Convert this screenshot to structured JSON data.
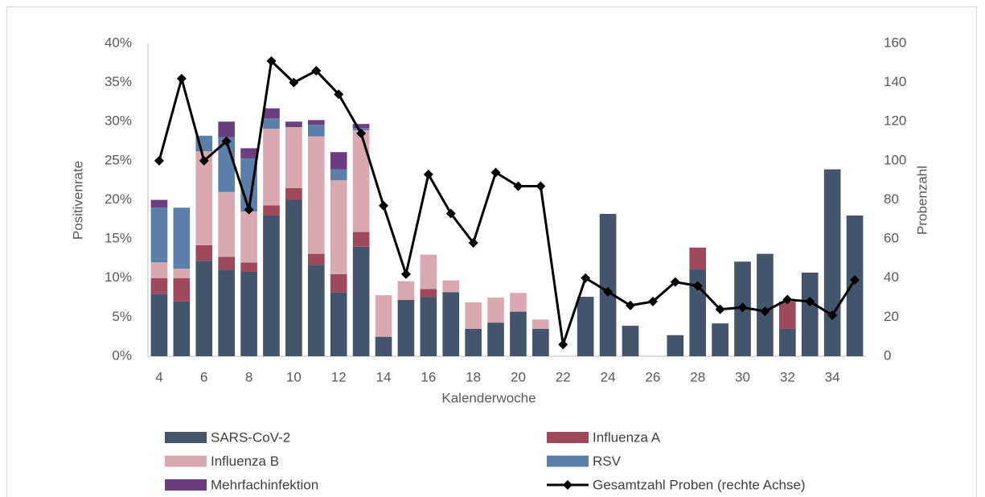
{
  "chart_data": {
    "type": "bar",
    "stacked": true,
    "x_label": "Kalenderwoche",
    "y_label": "Positivenrate",
    "y2_label": "Probenzahl",
    "categories": [
      "4",
      null,
      "6",
      null,
      "8",
      null,
      "10",
      null,
      "12",
      null,
      "14",
      null,
      "16",
      null,
      "18",
      null,
      "20",
      null,
      "22",
      null,
      "24",
      null,
      "26",
      null,
      "28",
      null,
      "30",
      null,
      "32",
      null,
      "34",
      null
    ],
    "ylim": [
      0,
      40
    ],
    "yticks": [
      {
        "value": 0,
        "label": "0%"
      },
      {
        "value": 5,
        "label": "5%"
      },
      {
        "value": 10,
        "label": "10%"
      },
      {
        "value": 15,
        "label": "15%"
      },
      {
        "value": 20,
        "label": "20%"
      },
      {
        "value": 25,
        "label": "25%"
      },
      {
        "value": 30,
        "label": "30%"
      },
      {
        "value": 35,
        "label": "35%"
      },
      {
        "value": 40,
        "label": "40%"
      }
    ],
    "y2lim": [
      0,
      160
    ],
    "y2ticks": [
      0,
      20,
      40,
      60,
      80,
      100,
      120,
      140,
      160
    ],
    "series": [
      {
        "name": "SARS-CoV-2",
        "color": "#44546a",
        "values": [
          8,
          7,
          12.2,
          11,
          10.8,
          18,
          20,
          11.7,
          8.2,
          14,
          2.5,
          7.2,
          7.6,
          8.2,
          3.5,
          4.3,
          5.7,
          3.5,
          0,
          7.6,
          18.2,
          3.9,
          0,
          2.7,
          11.1,
          4.2,
          12.1,
          13.1,
          3.5,
          10.7,
          23.9,
          18
        ]
      },
      {
        "name": "Influenza A",
        "color": "#9e4a5c",
        "values": [
          2,
          3,
          2,
          1.7,
          1.2,
          1.3,
          1.5,
          1.4,
          2.3,
          1.9,
          0,
          0,
          1,
          0,
          0,
          0,
          0,
          0,
          0,
          0,
          0,
          0,
          0,
          0,
          2.8,
          0,
          0,
          0,
          3.5,
          0,
          0,
          0
        ]
      },
      {
        "name": "Influenza B",
        "color": "#d9a8b0",
        "values": [
          2,
          1.2,
          12,
          8.3,
          6.5,
          9.8,
          7.8,
          15,
          12,
          13,
          5.3,
          2.4,
          4.4,
          1.5,
          3.4,
          3.2,
          2.4,
          1.2,
          0,
          0,
          0,
          0,
          0,
          0,
          0,
          0,
          0,
          0,
          0,
          0,
          0,
          0
        ]
      },
      {
        "name": "RSV",
        "color": "#5b7fa8",
        "values": [
          7,
          7.8,
          2,
          7,
          6.8,
          1.3,
          0,
          1.5,
          1.4,
          0.3,
          0,
          0,
          0,
          0,
          0,
          0,
          0,
          0,
          0,
          0,
          0,
          0,
          0,
          0,
          0,
          0,
          0,
          0,
          0,
          0,
          0,
          0
        ]
      },
      {
        "name": "Mehrfachinfektion",
        "color": "#6b3e7f",
        "values": [
          1,
          0,
          0,
          2,
          1.3,
          1.3,
          0.7,
          0.6,
          2.2,
          0.5,
          0,
          0,
          0,
          0,
          0,
          0,
          0,
          0,
          0,
          0,
          0,
          0,
          0,
          0,
          0,
          0,
          0,
          0,
          0,
          0,
          0,
          0
        ]
      },
      {
        "name": "Gesamtzahl Proben (rechte Achse)",
        "color": "#000000",
        "type": "line",
        "axis": "y2",
        "values": [
          100,
          142,
          100,
          110,
          75,
          151,
          140,
          146,
          134,
          114,
          77,
          42,
          93,
          73,
          58,
          94,
          87,
          87,
          6,
          40,
          33,
          26,
          28,
          38,
          36,
          24,
          25,
          23,
          29,
          28,
          21,
          39
        ]
      }
    ]
  }
}
